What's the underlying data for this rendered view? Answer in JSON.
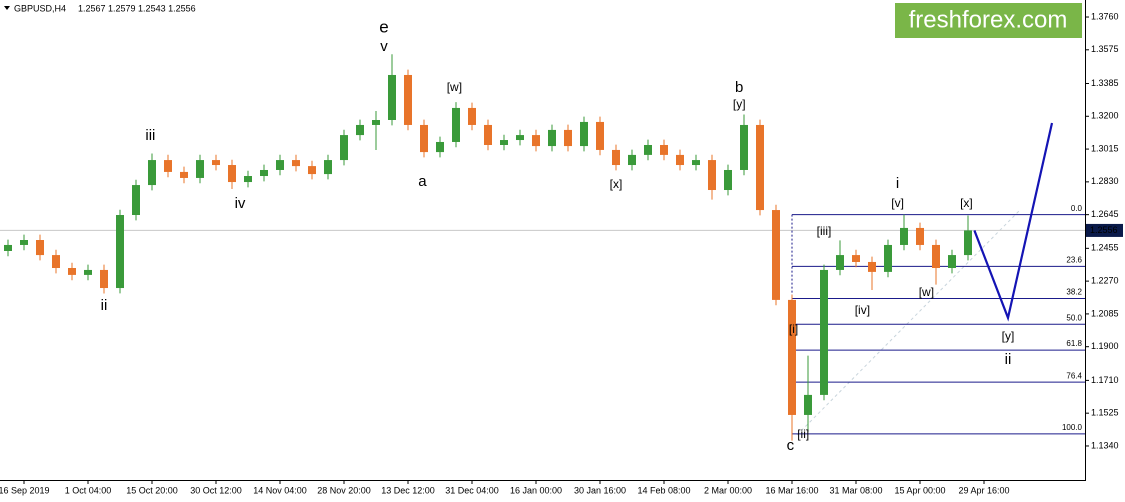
{
  "chart_data": {
    "type": "candlestick",
    "symbol": "GBPUSD,H4",
    "header_ohlc": "1.2567 1.2579 1.2543 1.2556",
    "watermark": "freshforex.com",
    "up_color": "#3a9a3a",
    "down_color": "#e8742a",
    "ylim": [
      1.1148,
      1.3856
    ],
    "yticks": [
      {
        "value": 1.376,
        "label": "1.3760"
      },
      {
        "value": 1.3575,
        "label": "1.3575"
      },
      {
        "value": 1.3385,
        "label": "1.3385"
      },
      {
        "value": 1.32,
        "label": "1.3200"
      },
      {
        "value": 1.3015,
        "label": "1.3015"
      },
      {
        "value": 1.283,
        "label": "1.2830"
      },
      {
        "value": 1.2645,
        "label": "1.2645"
      },
      {
        "value": 1.2455,
        "label": "1.2455"
      },
      {
        "value": 1.227,
        "label": "1.2270"
      },
      {
        "value": 1.2085,
        "label": "1.2085"
      },
      {
        "value": 1.19,
        "label": "1.1900"
      },
      {
        "value": 1.171,
        "label": "1.1710"
      },
      {
        "value": 1.1525,
        "label": "1.1525"
      },
      {
        "value": 1.134,
        "label": "1.1340"
      }
    ],
    "last_price": {
      "value": 1.2556,
      "label": "1.2556"
    },
    "categories": [
      null,
      "16 Sep 2019",
      null,
      null,
      null,
      "1 Oct 04:00",
      null,
      null,
      null,
      "15 Oct 20:00",
      null,
      null,
      null,
      "30 Oct 12:00",
      null,
      null,
      null,
      "14 Nov 04:00",
      null,
      null,
      null,
      "28 Nov 20:00",
      null,
      null,
      null,
      "13 Dec 12:00",
      null,
      null,
      null,
      "31 Dec 04:00",
      null,
      null,
      null,
      "16 Jan 00:00",
      null,
      null,
      null,
      "30 Jan 16:00",
      null,
      null,
      null,
      "14 Feb 08:00",
      null,
      null,
      null,
      "2 Mar 00:00",
      null,
      null,
      null,
      "16 Mar 16:00",
      null,
      null,
      null,
      "31 Mar 08:00",
      null,
      null,
      null,
      "15 Apr 00:00",
      null,
      null,
      null,
      "29 Apr 16:00"
    ],
    "open": [
      1.244,
      1.2474,
      1.2502,
      1.2417,
      1.2344,
      1.2305,
      1.2333,
      1.2231,
      1.2643,
      1.2812,
      1.2953,
      1.2886,
      1.2852,
      1.2953,
      1.2925,
      1.2829,
      1.2863,
      1.2897,
      1.2953,
      1.2919,
      1.2874,
      1.2953,
      1.3094,
      1.3151,
      1.3179,
      1.3433,
      1.3151,
      1.2998,
      1.3055,
      1.3247,
      1.3151,
      1.3038,
      1.3066,
      1.3094,
      1.3032,
      1.3123,
      1.3032,
      1.3168,
      1.301,
      1.2925,
      1.2982,
      1.3038,
      1.2982,
      1.2925,
      1.2953,
      1.2784,
      1.2897,
      1.3151,
      1.2671,
      1.2164,
      1.1515,
      1.1628,
      1.2333,
      1.2417,
      1.2378,
      1.2322,
      1.2474,
      1.257,
      1.2474,
      1.2344,
      1.2417,
      null
    ],
    "high": [
      1.2504,
      1.2532,
      1.2532,
      1.2447,
      1.2374,
      1.2363,
      1.2363,
      1.2673,
      1.2842,
      1.299,
      1.2983,
      1.2916,
      1.2983,
      1.2983,
      1.2955,
      1.2893,
      1.2927,
      1.2983,
      1.2983,
      1.2949,
      1.2983,
      1.3124,
      1.3181,
      1.323,
      1.355,
      1.3463,
      1.3181,
      1.3085,
      1.328,
      1.3277,
      1.3181,
      1.3096,
      1.3124,
      1.3124,
      1.3153,
      1.3153,
      1.3198,
      1.3198,
      1.304,
      1.3012,
      1.3068,
      1.3068,
      1.3012,
      1.2983,
      1.2983,
      1.2927,
      1.321,
      1.3181,
      1.2701,
      1.2194,
      1.185,
      1.2363,
      1.25,
      1.2447,
      1.2408,
      1.2504,
      1.2645,
      1.26,
      1.2504,
      1.2447,
      1.264,
      null
    ],
    "low": [
      1.241,
      1.2444,
      1.2387,
      1.2314,
      1.2275,
      1.2275,
      1.22,
      1.2201,
      1.2613,
      1.2782,
      1.2856,
      1.2822,
      1.2822,
      1.2895,
      1.279,
      1.2799,
      1.2833,
      1.2867,
      1.2889,
      1.2844,
      1.2844,
      1.2923,
      1.3064,
      1.301,
      1.3149,
      1.3121,
      1.2968,
      1.2968,
      1.3025,
      1.3121,
      1.3008,
      1.3008,
      1.3036,
      1.3002,
      1.3002,
      1.3002,
      1.3002,
      1.298,
      1.2895,
      1.2895,
      1.2952,
      1.2952,
      1.2895,
      1.2895,
      1.273,
      1.2754,
      1.2867,
      1.2641,
      1.2134,
      1.137,
      1.142,
      1.1598,
      1.2303,
      1.2348,
      1.222,
      1.2292,
      1.2444,
      1.2444,
      1.225,
      1.2314,
      1.2387,
      null
    ],
    "close": [
      1.2474,
      1.2502,
      1.2417,
      1.2344,
      1.2305,
      1.2333,
      1.2231,
      1.2643,
      1.2812,
      1.2953,
      1.2886,
      1.2852,
      1.2953,
      1.2925,
      1.2829,
      1.2863,
      1.2897,
      1.2953,
      1.2919,
      1.2874,
      1.2953,
      1.3094,
      1.3151,
      1.3179,
      1.3433,
      1.3151,
      1.2998,
      1.3055,
      1.3247,
      1.3151,
      1.3038,
      1.3066,
      1.3094,
      1.3032,
      1.3123,
      1.3032,
      1.3168,
      1.301,
      1.2925,
      1.2982,
      1.3038,
      1.2982,
      1.2925,
      1.2953,
      1.2784,
      1.2897,
      1.3151,
      1.2671,
      1.2164,
      1.1515,
      1.1628,
      1.2333,
      1.2417,
      1.2378,
      1.2322,
      1.2474,
      1.257,
      1.2474,
      1.2344,
      1.2417,
      1.2556,
      null
    ],
    "fib_levels": [
      {
        "label": "0.0",
        "value": 1.2645
      },
      {
        "label": "23.6",
        "value": 1.2353
      },
      {
        "label": "38.2",
        "value": 1.2172
      },
      {
        "label": "50.0",
        "value": 1.2027
      },
      {
        "label": "61.8",
        "value": 1.1881
      },
      {
        "label": "76.4",
        "value": 1.17
      },
      {
        "label": "100.0",
        "value": 1.1408
      }
    ],
    "fib_color": "#1a1a8a",
    "forecast": {
      "color": "#1414b4",
      "x": [
        60.4,
        62.5,
        65.25
      ],
      "values": [
        1.2556,
        1.2063,
        1.3162
      ]
    },
    "annotations": [
      {
        "text": "e",
        "x": 23.5,
        "value": 1.3698,
        "color": "#e00000"
      },
      {
        "text": "v",
        "x": 23.5,
        "value": 1.3591,
        "color": "#1a1a6a"
      },
      {
        "text": "iii",
        "x": 8.9,
        "value": 1.3089,
        "color": "#1a1a6a"
      },
      {
        "text": "ii",
        "x": 6,
        "value": 1.213,
        "color": "#1a1a6a"
      },
      {
        "text": "iv",
        "x": 14.5,
        "value": 1.2705,
        "color": "#1a1a6a"
      },
      {
        "text": "[w]",
        "x": 27.9,
        "value": 1.336,
        "color": "#3a8a2a"
      },
      {
        "text": "a",
        "x": 25.9,
        "value": 1.2829,
        "color": "#1a1a6a"
      },
      {
        "text": "[x]",
        "x": 38,
        "value": 1.2812,
        "color": "#3a8a2a"
      },
      {
        "text": "b",
        "x": 45.7,
        "value": 1.336,
        "color": "#1a1a6a"
      },
      {
        "text": "[y]",
        "x": 45.7,
        "value": 1.3264,
        "color": "#3a8a2a"
      },
      {
        "text": "c",
        "x": 48.9,
        "value": 1.134,
        "color": "#1a1a6a"
      },
      {
        "text": "[i]",
        "x": 49.1,
        "value": 1.1995,
        "color": "#3a8a2a"
      },
      {
        "text": "[ii]",
        "x": 49.7,
        "value": 1.1403,
        "color": "#3a8a2a"
      },
      {
        "text": "[iii]",
        "x": 51,
        "value": 1.2547,
        "color": "#3a8a2a"
      },
      {
        "text": "[iv]",
        "x": 53.4,
        "value": 1.2102,
        "color": "#3a8a2a"
      },
      {
        "text": "i",
        "x": 55.6,
        "value": 1.2818,
        "color": "#1a1a6a"
      },
      {
        "text": "[v]",
        "x": 55.6,
        "value": 1.2705,
        "color": "#3a8a2a"
      },
      {
        "text": "[w]",
        "x": 57.4,
        "value": 1.2203,
        "color": "#3a8a2a"
      },
      {
        "text": "[x]",
        "x": 59.9,
        "value": 1.2705,
        "color": "#3a8a2a"
      },
      {
        "text": "[y]",
        "x": 62.5,
        "value": 1.1955,
        "color": "#3a8a2a"
      },
      {
        "text": "ii",
        "x": 62.5,
        "value": 1.1826,
        "color": "#1a1a6a"
      }
    ]
  }
}
